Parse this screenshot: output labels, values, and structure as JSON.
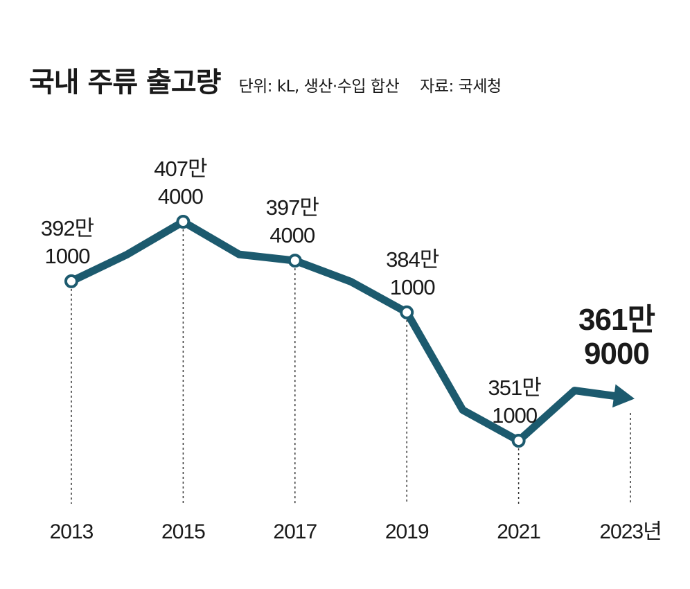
{
  "header": {
    "title": "국내 주류 출고량",
    "unit_note": "단위: kL, 생산·수입 합산",
    "source": "자료: 국세청"
  },
  "colors": {
    "line": "#1c5a6e",
    "guide": "#333333",
    "text": "#1a1a1a"
  },
  "chart_data": {
    "type": "line",
    "title": "국내 주류 출고량",
    "unit": "kL",
    "x": [
      2013,
      2014,
      2015,
      2016,
      2017,
      2018,
      2019,
      2020,
      2021,
      2022,
      2023
    ],
    "series": [
      {
        "values": [
          3921000,
          3990000,
          4074000,
          3990000,
          3974000,
          3920000,
          3841000,
          3590000,
          3511000,
          3640000,
          3619000
        ]
      }
    ],
    "x_tick_labels": [
      "2013",
      "2015",
      "2017",
      "2019",
      "2021",
      "2023년"
    ],
    "data_labels": [
      {
        "x": 2013,
        "line1": "392만",
        "line2": "1000"
      },
      {
        "x": 2015,
        "line1": "407만",
        "line2": "4000"
      },
      {
        "x": 2017,
        "line1": "397만",
        "line2": "4000"
      },
      {
        "x": 2019,
        "line1": "384만",
        "line2": "1000"
      },
      {
        "x": 2021,
        "line1": "351만",
        "line2": "1000"
      },
      {
        "x": 2023,
        "line1": "361만",
        "line2": "9000"
      }
    ],
    "ylim": [
      3400000,
      4200000
    ],
    "grid": false,
    "legend": "none"
  }
}
